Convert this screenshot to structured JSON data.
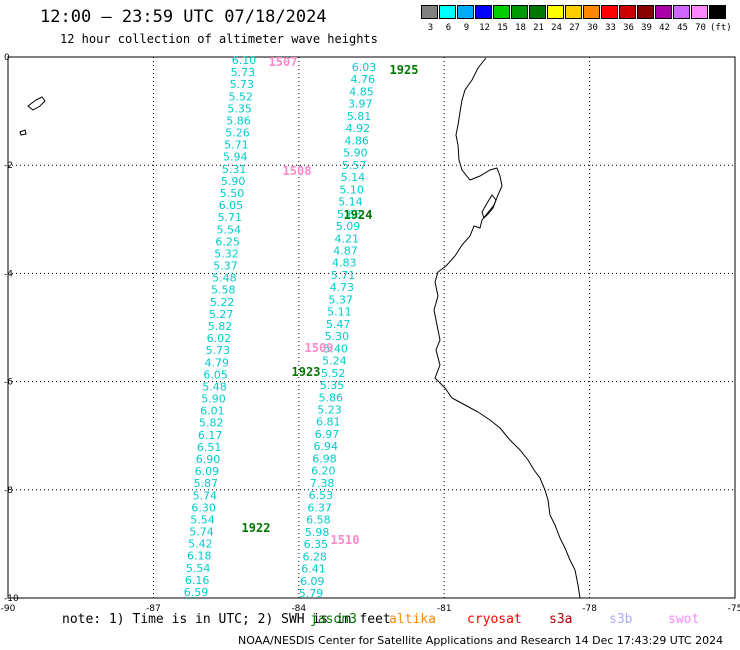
{
  "header": {
    "title": "12:00 – 23:59 UTC 07/18/2024",
    "subtitle": "12 hour collection of altimeter wave heights"
  },
  "legend": {
    "colors": [
      "#808080",
      "#00ffff",
      "#00aaff",
      "#0000ff",
      "#00cc00",
      "#009900",
      "#007700",
      "#ffff00",
      "#ffcc00",
      "#ff8800",
      "#ff0000",
      "#cc0000",
      "#880000",
      "#aa00aa",
      "#cc66ff",
      "#ff88ff",
      "#000000"
    ],
    "labels": [
      "3",
      "6",
      "9",
      "12",
      "15",
      "18",
      "21",
      "24",
      "27",
      "30",
      "33",
      "36",
      "39",
      "42",
      "45",
      "70",
      "(ft)"
    ]
  },
  "axes": {
    "x_ticks": [
      "-90",
      "-87",
      "-84",
      "-81",
      "-78",
      "-75"
    ],
    "y_ticks": [
      "0",
      "-2",
      "-4",
      "-6",
      "-8",
      "-10"
    ]
  },
  "chart_data": {
    "type": "scatter",
    "xlim": [
      -90,
      -75
    ],
    "ylim": [
      -10,
      0
    ],
    "grid": true,
    "tracks": [
      {
        "values": [
          "6.10",
          "5.73",
          "5.73",
          "5.52",
          "5.35",
          "5.86",
          "5.26",
          "5.71",
          "5.94",
          "5.31",
          "5.90",
          "5.50",
          "6.05",
          "5.71",
          "5.54",
          "6.25",
          "5.32",
          "5.37",
          "5.48",
          "5.58",
          "5.22",
          "5.27",
          "5.82",
          "6.02",
          "5.73",
          "4.79",
          "6.05",
          "5.48",
          "5.90",
          "6.01",
          "5.82",
          "6.17",
          "6.51",
          "6.90",
          "6.09",
          "5.87",
          "5.74",
          "6.30",
          "5.54",
          "5.74",
          "5.42",
          "6.18",
          "5.54",
          "6.16",
          "6.59"
        ]
      },
      {
        "values": [
          "6.03",
          "4.76",
          "4.85",
          "3.97",
          "5.81",
          "4.92",
          "4.86",
          "5.90",
          "5.57",
          "5.14",
          "5.10",
          "5.14",
          "5.68",
          "5.09",
          "4.21",
          "4.87",
          "4.83",
          "5.71",
          "4.73",
          "5.37",
          "5.11",
          "5.47",
          "5.30",
          "5.40",
          "5.24",
          "5.52",
          "5.35",
          "5.86",
          "5.23",
          "6.81",
          "6.97",
          "6.94",
          "6.98",
          "6.20",
          "7.38",
          "6.53",
          "6.37",
          "6.58",
          "5.98",
          "6.35",
          "6.28",
          "6.41",
          "6.09",
          "5.79"
        ]
      }
    ],
    "labels": [
      {
        "text": "1507",
        "color": "#ff88cc"
      },
      {
        "text": "1925",
        "color": "#007700"
      },
      {
        "text": "1508",
        "color": "#ff88cc"
      },
      {
        "text": "1924",
        "color": "#007700"
      },
      {
        "text": "1509",
        "color": "#ff88cc"
      },
      {
        "text": "1923",
        "color": "#007700"
      },
      {
        "text": "1922",
        "color": "#007700"
      },
      {
        "text": "1510",
        "color": "#ff88cc"
      }
    ]
  },
  "note": "note: 1) Time is in UTC; 2) SWH is in feet",
  "missions": [
    {
      "name": "jason3",
      "color": "#007700"
    },
    {
      "name": "altika",
      "color": "#ff8800"
    },
    {
      "name": "cryosat",
      "color": "#ff0000"
    },
    {
      "name": "s3a",
      "color": "#aa0000"
    },
    {
      "name": "s3b",
      "color": "#aaaaff"
    },
    {
      "name": "swot",
      "color": "#ff88ff"
    }
  ],
  "footer": "NOAA/NESDIS Center for Satellite Applications and Research    14 Dec 17:43:29 UTC 2024"
}
